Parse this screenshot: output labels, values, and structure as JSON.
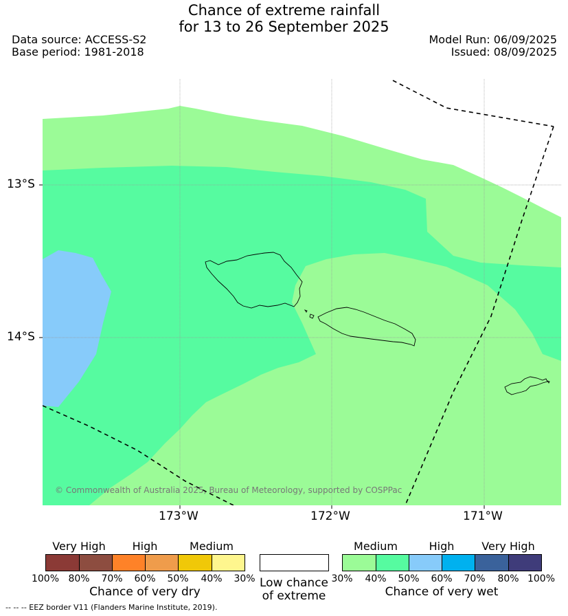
{
  "header": {
    "title_line1": "Chance of extreme rainfall",
    "title_line2": "for 13 to 26 September 2025",
    "data_source": "Data source: ACCESS-S2",
    "base_period": "Base period: 1981-2018",
    "model_run": "Model Run: 06/09/2025",
    "issued": "Issued: 08/09/2025"
  },
  "map": {
    "lat_labels": [
      "13°S",
      "14°S"
    ],
    "lon_labels": [
      "173°W",
      "172°W",
      "171°W"
    ],
    "copyright": "© Commonwealth of Australia 2025, Bureau of Meteorology, supported by COSPPac",
    "regions": [
      {
        "category": "Medium (30-40%) chance of very wet",
        "color": "#9bfb97"
      },
      {
        "category": "Medium (40-50%) chance of very wet",
        "color": "#56fba0"
      },
      {
        "category": "High (50-60%) chance of very wet",
        "color": "#87cbfa"
      },
      {
        "category": "Low chance of extreme",
        "color": "#ffffff"
      }
    ]
  },
  "legend": {
    "dry": {
      "categories": [
        "Very High",
        "High",
        "Medium"
      ],
      "ticks": [
        "100%",
        "80%",
        "70%",
        "60%",
        "50%",
        "40%",
        "30%"
      ],
      "colors": [
        "#8b3a36",
        "#8d4d40",
        "#fe8228",
        "#ef9c4b",
        "#f0c808",
        "#fef68e"
      ],
      "label": "Chance of very dry"
    },
    "low": {
      "label_line1": "Low chance",
      "label_line2": "of extreme",
      "color": "#ffffff"
    },
    "wet": {
      "categories": [
        "Medium",
        "High",
        "Very High"
      ],
      "ticks": [
        "30%",
        "40%",
        "50%",
        "60%",
        "70%",
        "80%",
        "100%"
      ],
      "colors": [
        "#9bfb97",
        "#56fba0",
        "#87cbfa",
        "#00b1ef",
        "#3a629b",
        "#3f3c7a"
      ],
      "label": "Chance of very wet"
    }
  },
  "footer": {
    "eez_note": "-- -- -- EEZ border V11 (Flanders Marine Institute, 2019)."
  }
}
